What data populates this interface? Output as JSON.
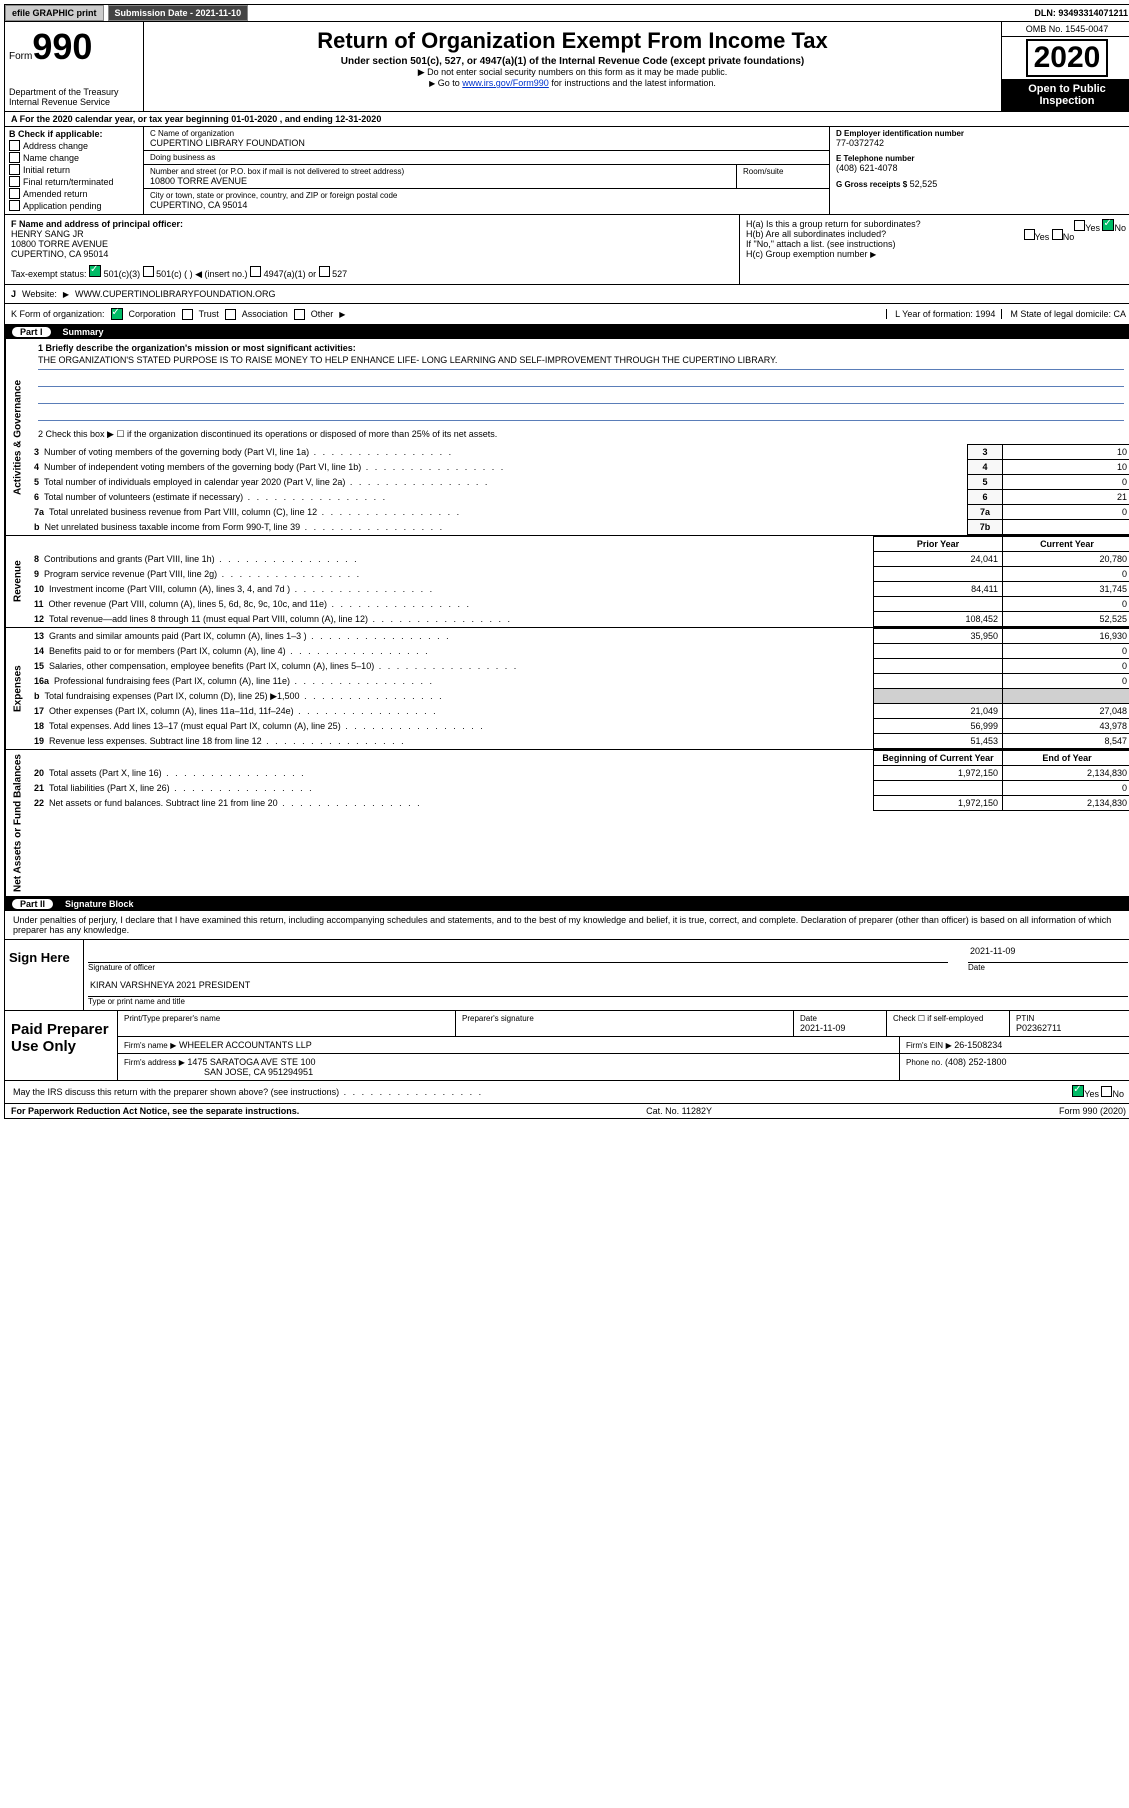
{
  "topbar": {
    "efile": "efile GRAPHIC print",
    "sub_label": "Submission Date - 2021-11-10",
    "dln": "DLN: 93493314071211"
  },
  "header": {
    "form": "Form",
    "form_no": "990",
    "dept1": "Department of the Treasury",
    "dept2": "Internal Revenue Service",
    "title": "Return of Organization Exempt From Income Tax",
    "sub": "Under section 501(c), 527, or 4947(a)(1) of the Internal Revenue Code (except private foundations)",
    "note1": "Do not enter social security numbers on this form as it may be made public.",
    "note2_pre": "Go to ",
    "note2_link": "www.irs.gov/Form990",
    "note2_post": " for instructions and the latest information.",
    "omb": "OMB No. 1545-0047",
    "year": "2020",
    "open": "Open to Public Inspection"
  },
  "period": {
    "text": "A For the 2020 calendar year, or tax year beginning 01-01-2020   , and ending 12-31-2020"
  },
  "b": {
    "title": "B Check if applicable:",
    "items": [
      "Address change",
      "Name change",
      "Initial return",
      "Final return/terminated",
      "Amended return",
      "Application pending"
    ]
  },
  "c": {
    "name_lbl": "C Name of organization",
    "name": "CUPERTINO LIBRARY FOUNDATION",
    "dba_lbl": "Doing business as",
    "dba": "",
    "addr_lbl": "Number and street (or P.O. box if mail is not delivered to street address)",
    "room_lbl": "Room/suite",
    "addr": "10800 TORRE AVENUE",
    "city_lbl": "City or town, state or province, country, and ZIP or foreign postal code",
    "city": "CUPERTINO, CA  95014"
  },
  "d": {
    "lbl": "D Employer identification number",
    "val": "77-0372742"
  },
  "e": {
    "lbl": "E Telephone number",
    "val": "(408) 621-4078"
  },
  "g": {
    "lbl": "G Gross receipts $",
    "val": "52,525"
  },
  "f": {
    "lbl": "F  Name and address of principal officer:",
    "name": "HENRY SANG JR",
    "addr1": "10800 TORRE AVENUE",
    "addr2": "CUPERTINO, CA  95014"
  },
  "h": {
    "ha": "H(a)  Is this a group return for subordinates?",
    "ha_yes": "Yes",
    "ha_no": "No",
    "hb": "H(b)  Are all subordinates included?",
    "hb_yes": "Yes",
    "hb_no": "No",
    "hb_note": "If \"No,\" attach a list. (see instructions)",
    "hc": "H(c)  Group exemption number"
  },
  "i": {
    "lbl": "Tax-exempt status:",
    "opts": [
      "501(c)(3)",
      "501(c) (  ) ◀ (insert no.)",
      "4947(a)(1) or",
      "527"
    ]
  },
  "j": {
    "lbl": "J",
    "text": "Website:",
    "val": "WWW.CUPERTINOLIBRARYFOUNDATION.ORG"
  },
  "k": {
    "lbl": "K Form of organization:",
    "opts": [
      "Corporation",
      "Trust",
      "Association",
      "Other"
    ],
    "l_lbl": "L Year of formation:",
    "l_val": "1994",
    "m_lbl": "M State of legal domicile:",
    "m_val": "CA"
  },
  "part1": {
    "title": "Part I",
    "sub": "Summary",
    "q1": "1  Briefly describe the organization's mission or most significant activities:",
    "mission": "THE ORGANIZATION'S STATED PURPOSE IS TO RAISE MONEY TO HELP ENHANCE LIFE- LONG LEARNING AND SELF-IMPROVEMENT THROUGH THE CUPERTINO LIBRARY.",
    "q2": "2   Check this box ▶ ☐  if the organization discontinued its operations or disposed of more than 25% of its net assets.",
    "lines": [
      {
        "n": "3",
        "t": "Number of voting members of the governing body (Part VI, line 1a)",
        "b": "3",
        "v": "10"
      },
      {
        "n": "4",
        "t": "Number of independent voting members of the governing body (Part VI, line 1b)",
        "b": "4",
        "v": "10"
      },
      {
        "n": "5",
        "t": "Total number of individuals employed in calendar year 2020 (Part V, line 2a)",
        "b": "5",
        "v": "0"
      },
      {
        "n": "6",
        "t": "Total number of volunteers (estimate if necessary)",
        "b": "6",
        "v": "21"
      },
      {
        "n": "7a",
        "t": "Total unrelated business revenue from Part VIII, column (C), line 12",
        "b": "7a",
        "v": "0"
      },
      {
        "n": "b",
        "t": "Net unrelated business taxable income from Form 990-T, line 39",
        "b": "7b",
        "v": ""
      }
    ],
    "col_prior": "Prior Year",
    "col_curr": "Current Year",
    "revenue": [
      {
        "n": "8",
        "t": "Contributions and grants (Part VIII, line 1h)",
        "p": "24,041",
        "c": "20,780"
      },
      {
        "n": "9",
        "t": "Program service revenue (Part VIII, line 2g)",
        "p": "",
        "c": "0"
      },
      {
        "n": "10",
        "t": "Investment income (Part VIII, column (A), lines 3, 4, and 7d )",
        "p": "84,411",
        "c": "31,745"
      },
      {
        "n": "11",
        "t": "Other revenue (Part VIII, column (A), lines 5, 6d, 8c, 9c, 10c, and 11e)",
        "p": "",
        "c": "0"
      },
      {
        "n": "12",
        "t": "Total revenue—add lines 8 through 11 (must equal Part VIII, column (A), line 12)",
        "p": "108,452",
        "c": "52,525"
      }
    ],
    "expenses": [
      {
        "n": "13",
        "t": "Grants and similar amounts paid (Part IX, column (A), lines 1–3 )",
        "p": "35,950",
        "c": "16,930"
      },
      {
        "n": "14",
        "t": "Benefits paid to or for members (Part IX, column (A), line 4)",
        "p": "",
        "c": "0"
      },
      {
        "n": "15",
        "t": "Salaries, other compensation, employee benefits (Part IX, column (A), lines 5–10)",
        "p": "",
        "c": "0"
      },
      {
        "n": "16a",
        "t": "Professional fundraising fees (Part IX, column (A), line 11e)",
        "p": "",
        "c": "0"
      },
      {
        "n": "b",
        "t": "Total fundraising expenses (Part IX, column (D), line 25) ▶1,500",
        "p": "__SHADE__",
        "c": "__SHADE__"
      },
      {
        "n": "17",
        "t": "Other expenses (Part IX, column (A), lines 11a–11d, 11f–24e)",
        "p": "21,049",
        "c": "27,048"
      },
      {
        "n": "18",
        "t": "Total expenses. Add lines 13–17 (must equal Part IX, column (A), line 25)",
        "p": "56,999",
        "c": "43,978"
      },
      {
        "n": "19",
        "t": "Revenue less expenses. Subtract line 18 from line 12",
        "p": "51,453",
        "c": "8,547"
      }
    ],
    "col_begin": "Beginning of Current Year",
    "col_end": "End of Year",
    "netassets": [
      {
        "n": "20",
        "t": "Total assets (Part X, line 16)",
        "p": "1,972,150",
        "c": "2,134,830"
      },
      {
        "n": "21",
        "t": "Total liabilities (Part X, line 26)",
        "p": "",
        "c": "0"
      },
      {
        "n": "22",
        "t": "Net assets or fund balances. Subtract line 21 from line 20",
        "p": "1,972,150",
        "c": "2,134,830"
      }
    ],
    "vtabs": {
      "gov": "Activities & Governance",
      "rev": "Revenue",
      "exp": "Expenses",
      "net": "Net Assets or Fund Balances"
    }
  },
  "part2": {
    "title": "Part II",
    "sub": "Signature Block",
    "penalty": "Under penalties of perjury, I declare that I have examined this return, including accompanying schedules and statements, and to the best of my knowledge and belief, it is true, correct, and complete. Declaration of preparer (other than officer) is based on all information of which preparer has any knowledge.",
    "sign_here": "Sign Here",
    "sig_officer_lbl": "Signature of officer",
    "date_lbl": "Date",
    "date_val": "2021-11-09",
    "name": "KIRAN VARSHNEYA 2021 PRESIDENT",
    "name_lbl": "Type or print name and title",
    "paid": "Paid Preparer Use Only",
    "prep_name_lbl": "Print/Type preparer's name",
    "prep_sig_lbl": "Preparer's signature",
    "prep_date_lbl": "Date",
    "prep_date": "2021-11-09",
    "prep_chk": "Check ☐ if self-employed",
    "ptin_lbl": "PTIN",
    "ptin": "P02362711",
    "firm_name_lbl": "Firm's name",
    "firm_name": "WHEELER ACCOUNTANTS LLP",
    "firm_ein_lbl": "Firm's EIN",
    "firm_ein": "26-1508234",
    "firm_addr_lbl": "Firm's address",
    "firm_addr1": "1475 SARATOGA AVE STE 100",
    "firm_addr2": "SAN JOSE, CA  951294951",
    "phone_lbl": "Phone no.",
    "phone": "(408) 252-1800",
    "discuss": "May the IRS discuss this return with the preparer shown above? (see instructions)",
    "yes": "Yes",
    "no": "No"
  },
  "footer": {
    "left": "For Paperwork Reduction Act Notice, see the separate instructions.",
    "mid": "Cat. No. 11282Y",
    "right": "Form 990 (2020)"
  },
  "colors": {
    "link": "#0033cc",
    "hl_underline": "#5a7db8",
    "shade": "#d0d0d0"
  }
}
